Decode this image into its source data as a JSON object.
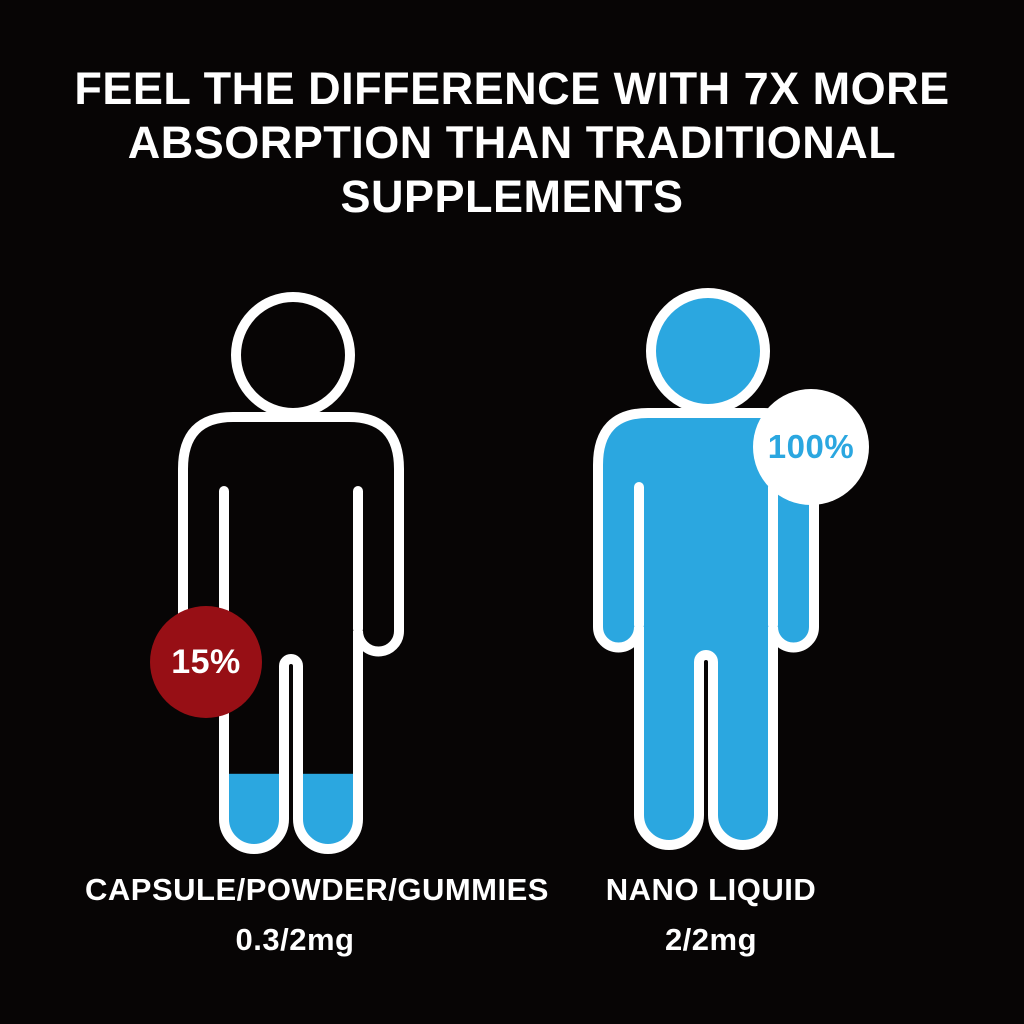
{
  "poster": {
    "headline_lines": [
      "FEEL THE DIFFERENCE WITH 7X MORE",
      "ABSORPTION THAN TRADITIONAL",
      "SUPPLEMENTS"
    ]
  },
  "figures": {
    "traditional": {
      "absorption_label": "15%",
      "absorption_percent": 15,
      "product_label": "CAPSULE/POWDER/GUMMIES",
      "dosage_label": "0.3/2mg"
    },
    "nano": {
      "absorption_label": "100%",
      "absorption_percent": 100,
      "product_label": "NANO LIQUID",
      "dosage_label": "2/2mg"
    }
  },
  "colors": {
    "background": "#070505",
    "figure_blue": "#2BA7E0",
    "badge_red": "#970F15",
    "badge_white": "#FFFFFF",
    "text_white": "#FFFFFF"
  },
  "chart_data": {
    "type": "bar",
    "variant": "pictogram-fill (human figures filled to absorption level)",
    "title": "FEEL THE DIFFERENCE WITH 7X MORE ABSORPTION THAN TRADITIONAL SUPPLEMENTS",
    "categories": [
      "CAPSULE/POWDER/GUMMIES",
      "NANO LIQUID"
    ],
    "values": [
      15,
      100
    ],
    "value_labels": [
      "15%",
      "100%"
    ],
    "sub_labels": [
      "0.3/2mg",
      "2/2mg"
    ],
    "ylim": [
      0,
      100
    ],
    "unit": "%",
    "legend": "off",
    "grid": "off"
  }
}
